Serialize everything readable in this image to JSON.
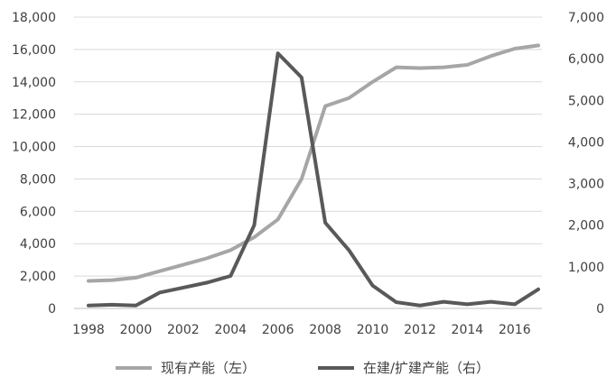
{
  "chart_data": {
    "type": "line",
    "title": "",
    "xlabel": "",
    "ylabel_left": "",
    "ylabel_right": "",
    "x_ticks": [
      "1998",
      "2000",
      "2002",
      "2004",
      "2006",
      "2008",
      "2010",
      "2012",
      "2014",
      "2016"
    ],
    "y_left_ticks": [
      "0",
      "2,000",
      "4,000",
      "6,000",
      "8,000",
      "10,000",
      "12,000",
      "14,000",
      "16,000",
      "18,000"
    ],
    "y_right_ticks": [
      "0",
      "1,000",
      "2,000",
      "3,000",
      "4,000",
      "5,000",
      "6,000",
      "7,000"
    ],
    "xlim": [
      1998,
      2017
    ],
    "ylim_left": [
      0,
      18000
    ],
    "ylim_right": [
      0,
      7000
    ],
    "grid": "horizontal",
    "legend_position": "bottom",
    "series": [
      {
        "name": "现有产能（左）",
        "axis": "left",
        "color": "#a6a6a6",
        "x": [
          1998,
          1999,
          2000,
          2001,
          2002,
          2003,
          2004,
          2005,
          2006,
          2007,
          2008,
          2009,
          2010,
          2011,
          2012,
          2013,
          2014,
          2015,
          2016,
          2017
        ],
        "y": [
          1700,
          1750,
          1900,
          2300,
          2700,
          3100,
          3600,
          4400,
          5500,
          8000,
          12500,
          13000,
          14000,
          14900,
          14850,
          14900,
          15050,
          15600,
          16050,
          16250
        ]
      },
      {
        "name": "在建/扩建产能（右）",
        "axis": "right",
        "color": "#595959",
        "x": [
          1998,
          1999,
          2000,
          2001,
          2002,
          2003,
          2004,
          2005,
          2006,
          2007,
          2008,
          2009,
          2010,
          2011,
          2012,
          2013,
          2014,
          2015,
          2016,
          2017
        ],
        "y": [
          70,
          90,
          70,
          380,
          500,
          620,
          780,
          2000,
          6130,
          5550,
          2060,
          1400,
          550,
          150,
          70,
          160,
          100,
          160,
          100,
          460
        ]
      }
    ]
  }
}
